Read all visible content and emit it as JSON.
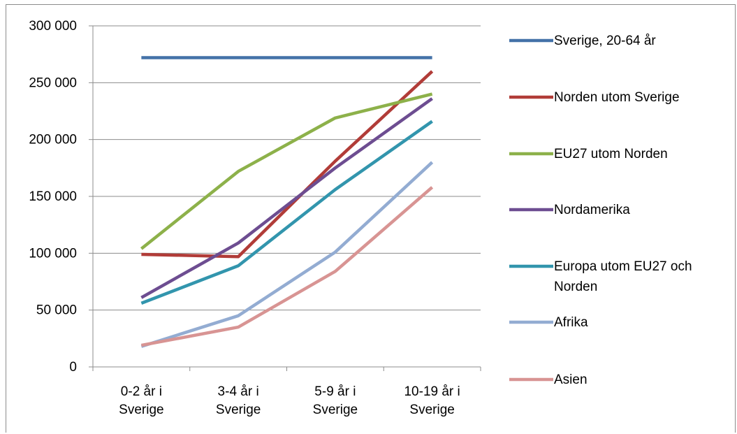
{
  "chart_data": {
    "type": "line",
    "title": "",
    "xlabel": "",
    "ylabel": "",
    "ylim": [
      0,
      300000
    ],
    "yticks": [
      0,
      50000,
      100000,
      150000,
      200000,
      250000,
      300000
    ],
    "ytick_labels": [
      "0",
      "50 000",
      "100 000",
      "150 000",
      "200 000",
      "250 000",
      "300 000"
    ],
    "categories": [
      [
        "0-2 år i",
        "Sverige"
      ],
      [
        "3-4 år i",
        "Sverige"
      ],
      [
        "5-9 år i",
        "Sverige"
      ],
      [
        "10-19 år i",
        "Sverige"
      ]
    ],
    "grid": "horizontal",
    "legend_position": "right",
    "series": [
      {
        "name": "Sverige, 20-64 år",
        "color": "#4472a8",
        "values": [
          272000,
          272000,
          272000,
          272000
        ]
      },
      {
        "name": "Norden utom Sverige",
        "color": "#b13c38",
        "values": [
          99000,
          97000,
          181000,
          260000
        ]
      },
      {
        "name": "EU27 utom Norden",
        "color": "#8db14a",
        "values": [
          104000,
          172000,
          219000,
          240000
        ]
      },
      {
        "name": "Nordamerika",
        "color": "#6d4d91",
        "values": [
          61000,
          109000,
          175000,
          236000
        ]
      },
      {
        "name": "Europa utom EU27 och Norden",
        "color": "#3295ad",
        "values": [
          56000,
          89000,
          156000,
          216000
        ]
      },
      {
        "name": "Afrika",
        "color": "#93acd2",
        "values": [
          18000,
          45000,
          101000,
          180000
        ]
      },
      {
        "name": "Asien",
        "color": "#d89493",
        "values": [
          19000,
          35000,
          84000,
          158000
        ]
      }
    ],
    "legend_labels": [
      [
        "Sverige, 20-64 år"
      ],
      [
        "Norden utom Sverige"
      ],
      [
        "EU27 utom Norden"
      ],
      [
        "Nordamerika"
      ],
      [
        "Europa utom EU27 och",
        "Norden"
      ],
      [
        "Afrika"
      ],
      [
        "Asien"
      ]
    ]
  }
}
